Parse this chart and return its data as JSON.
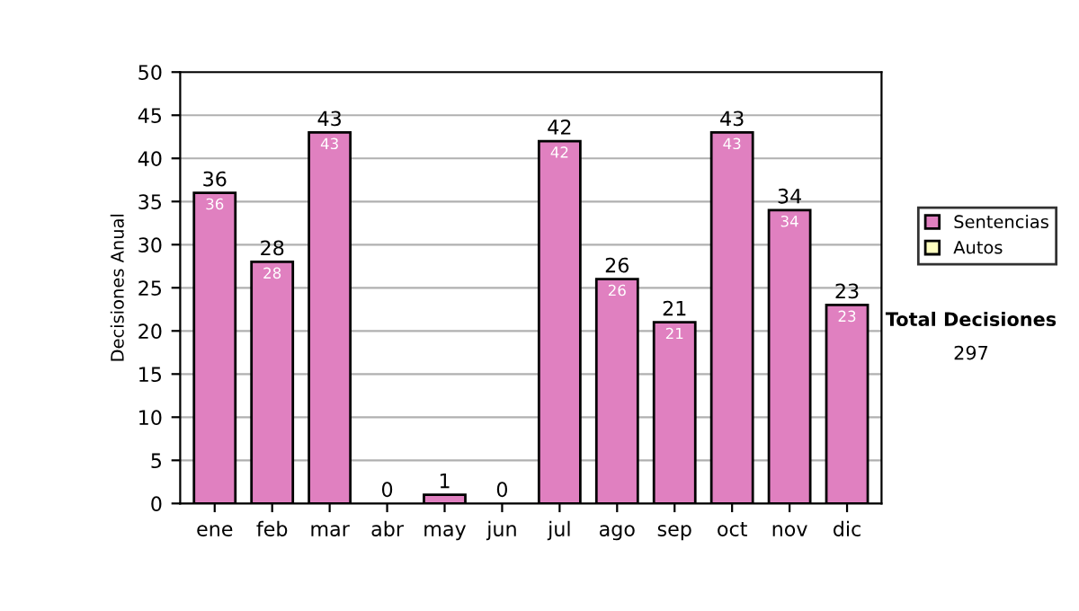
{
  "chart_data": {
    "type": "bar",
    "ylabel": "Decisiones Anual",
    "categories": [
      "ene",
      "feb",
      "mar",
      "abr",
      "may",
      "jun",
      "jul",
      "ago",
      "sep",
      "oct",
      "nov",
      "dic"
    ],
    "series": [
      {
        "name": "Sentencias",
        "color": "#e080c0",
        "values": [
          36,
          28,
          43,
          0,
          1,
          0,
          42,
          26,
          21,
          43,
          34,
          23
        ],
        "value_labels": [
          "36",
          "28",
          "43",
          null,
          null,
          null,
          "42",
          "26",
          "21",
          "43",
          "34",
          "23"
        ]
      },
      {
        "name": "Autos",
        "color": "#ffffc0",
        "values": [
          0,
          0,
          0,
          0,
          0,
          0,
          0,
          0,
          0,
          0,
          0,
          0
        ]
      }
    ],
    "stacked": true,
    "totals": [
      "36",
      "28",
      "43",
      "0",
      "1",
      "0",
      "42",
      "26",
      "21",
      "43",
      "34",
      "23"
    ],
    "ylim": [
      0,
      50
    ],
    "yticks": [
      0,
      5,
      10,
      15,
      20,
      25,
      30,
      35,
      40,
      45,
      50
    ],
    "grid": "y",
    "legend": "right",
    "annotations": [
      "Total Decisiones",
      "297"
    ]
  }
}
